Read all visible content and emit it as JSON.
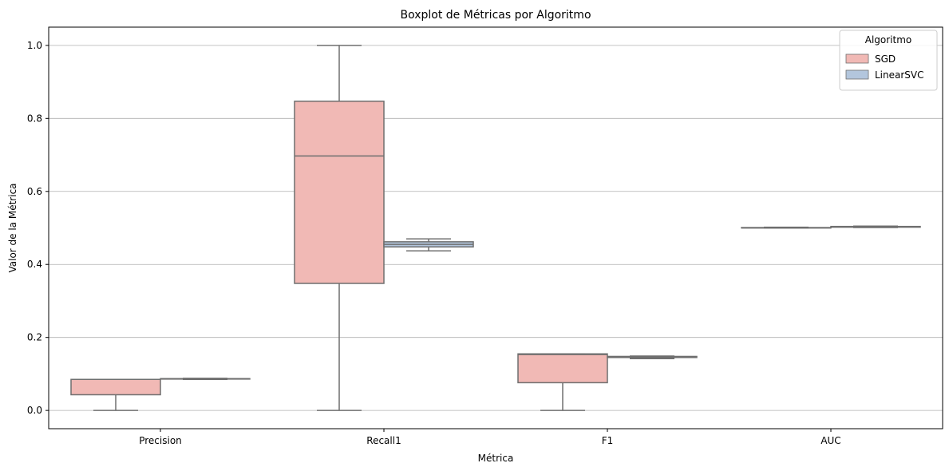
{
  "chart_data": {
    "type": "boxplot",
    "title": "Boxplot de Métricas por Algoritmo",
    "xlabel": "Métrica",
    "ylabel": "Valor de la Métrica",
    "categories": [
      "Precision",
      "Recall1",
      "F1",
      "AUC"
    ],
    "ylim": [
      -0.05,
      1.05
    ],
    "yticks": [
      "0.0",
      "0.2",
      "0.4",
      "0.6",
      "0.8",
      "1.0"
    ],
    "grid": "horizontal",
    "legend": {
      "title": "Algoritmo",
      "placement": "top-right"
    },
    "series": [
      {
        "name": "SGD",
        "color": "#f1b9b5",
        "boxes": [
          {
            "category": "Precision",
            "min": 0.0,
            "q1": 0.043,
            "median": 0.085,
            "q3": 0.085,
            "max": 0.085
          },
          {
            "category": "Recall1",
            "min": 0.0,
            "q1": 0.348,
            "median": 0.697,
            "q3": 0.847,
            "max": 1.0
          },
          {
            "category": "F1",
            "min": 0.0,
            "q1": 0.076,
            "median": 0.153,
            "q3": 0.155,
            "max": 0.155
          },
          {
            "category": "AUC",
            "min": 0.5,
            "q1": 0.5,
            "median": 0.5,
            "q3": 0.501,
            "max": 0.502
          }
        ]
      },
      {
        "name": "LinearSVC",
        "color": "#b3c6dd",
        "boxes": [
          {
            "category": "Precision",
            "min": 0.085,
            "q1": 0.086,
            "median": 0.087,
            "q3": 0.087,
            "max": 0.088
          },
          {
            "category": "Recall1",
            "min": 0.437,
            "q1": 0.448,
            "median": 0.455,
            "q3": 0.462,
            "max": 0.47
          },
          {
            "category": "F1",
            "min": 0.142,
            "q1": 0.145,
            "median": 0.147,
            "q3": 0.148,
            "max": 0.149
          },
          {
            "category": "AUC",
            "min": 0.501,
            "q1": 0.502,
            "median": 0.503,
            "q3": 0.504,
            "max": 0.505
          }
        ]
      }
    ]
  }
}
